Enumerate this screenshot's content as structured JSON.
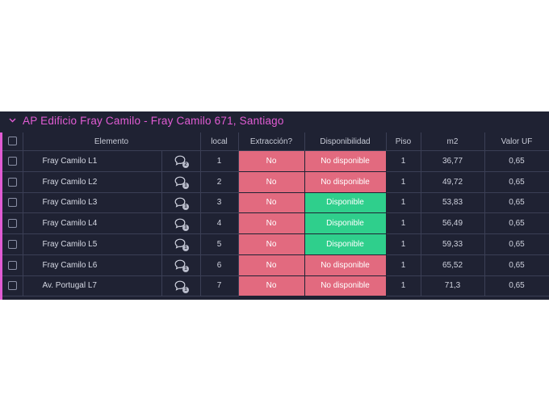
{
  "group": {
    "title": "AP Edificio Fray Camilo - Fray Camilo 671, Santiago",
    "accent_color": "#e15cd4"
  },
  "columns": {
    "elemento": "Elemento",
    "local": "local",
    "extraccion": "Extracción?",
    "disponibilidad": "Disponibilidad",
    "piso": "Piso",
    "m2": "m2",
    "valor_uf": "Valor UF"
  },
  "status_colors": {
    "no": "#e26a7f",
    "no_disponible": "#e26a7f",
    "disponible": "#2fcf8c"
  },
  "rows": [
    {
      "name": "Fray Camilo L1",
      "updates": "2",
      "local": "1",
      "extraccion": "No",
      "disponibilidad": "No disponible",
      "piso": "1",
      "m2": "36,77",
      "valor_uf": "0,65"
    },
    {
      "name": "Fray Camilo L2",
      "updates": "1",
      "local": "2",
      "extraccion": "No",
      "disponibilidad": "No disponible",
      "piso": "1",
      "m2": "49,72",
      "valor_uf": "0,65"
    },
    {
      "name": "Fray Camilo L3",
      "updates": "1",
      "local": "3",
      "extraccion": "No",
      "disponibilidad": "Disponible",
      "piso": "1",
      "m2": "53,83",
      "valor_uf": "0,65"
    },
    {
      "name": "Fray Camilo L4",
      "updates": "1",
      "local": "4",
      "extraccion": "No",
      "disponibilidad": "Disponible",
      "piso": "1",
      "m2": "56,49",
      "valor_uf": "0,65"
    },
    {
      "name": "Fray Camilo L5",
      "updates": "1",
      "local": "5",
      "extraccion": "No",
      "disponibilidad": "Disponible",
      "piso": "1",
      "m2": "59,33",
      "valor_uf": "0,65"
    },
    {
      "name": "Fray Camilo L6",
      "updates": "1",
      "local": "6",
      "extraccion": "No",
      "disponibilidad": "No disponible",
      "piso": "1",
      "m2": "65,52",
      "valor_uf": "0,65"
    },
    {
      "name": "Av. Portugal L7",
      "updates": "1",
      "local": "7",
      "extraccion": "No",
      "disponibilidad": "No disponible",
      "piso": "1",
      "m2": "71,3",
      "valor_uf": "0,65"
    }
  ]
}
